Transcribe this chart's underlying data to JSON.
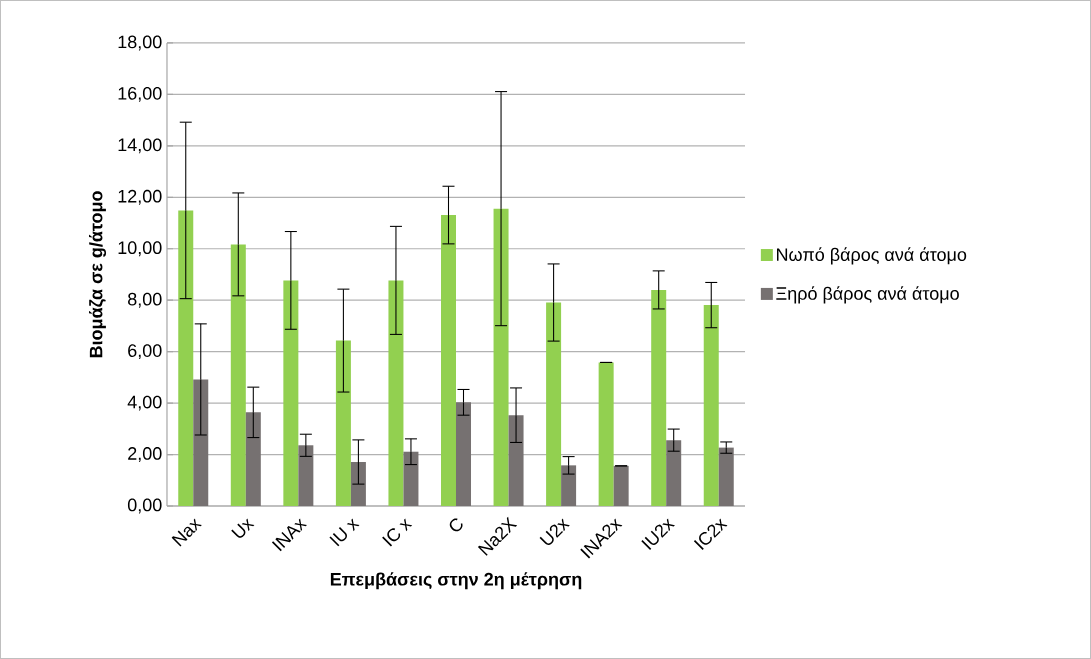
{
  "chart_data": {
    "type": "bar",
    "xlabel": "Επεμβάσεις στην 2η μέτρηση",
    "ylabel": "Βιομάζα σε g/άτομο",
    "categories": [
      "Nax",
      "Ux",
      "INAx",
      "IU x",
      "IC x",
      "C",
      "Na2X",
      "U2x",
      "INA2x",
      "IU2x",
      "IC2x"
    ],
    "series": [
      {
        "name": "Νωπό βάρος ανά άτομο",
        "color": "#92d050",
        "values": [
          11.49,
          10.17,
          8.77,
          6.43,
          8.77,
          11.31,
          11.56,
          7.91,
          5.58,
          8.4,
          7.81
        ],
        "errors": [
          3.43,
          2.0,
          1.9,
          2.0,
          2.1,
          1.12,
          4.55,
          1.5,
          0,
          0.74,
          0.88
        ]
      },
      {
        "name": "Ξηρό βάρος ανά άτομο",
        "color": "#767171",
        "values": [
          4.92,
          3.64,
          2.36,
          1.71,
          2.11,
          4.03,
          3.53,
          1.58,
          1.56,
          2.56,
          2.27
        ],
        "errors": [
          2.16,
          0.98,
          0.43,
          0.86,
          0.5,
          0.5,
          1.06,
          0.34,
          0,
          0.43,
          0.22
        ]
      }
    ],
    "ylim": [
      0,
      18
    ],
    "yticks": [
      {
        "value": 0,
        "label": "0,00"
      },
      {
        "value": 2,
        "label": "2,00"
      },
      {
        "value": 4,
        "label": "4,00"
      },
      {
        "value": 6,
        "label": "6,00"
      },
      {
        "value": 8,
        "label": "8,00"
      },
      {
        "value": 10,
        "label": "10,00"
      },
      {
        "value": 12,
        "label": "12,00"
      },
      {
        "value": 14,
        "label": "14,00"
      },
      {
        "value": 16,
        "label": "16,00"
      },
      {
        "value": 18,
        "label": "18,00"
      }
    ],
    "grid": "y",
    "legend": "right"
  }
}
